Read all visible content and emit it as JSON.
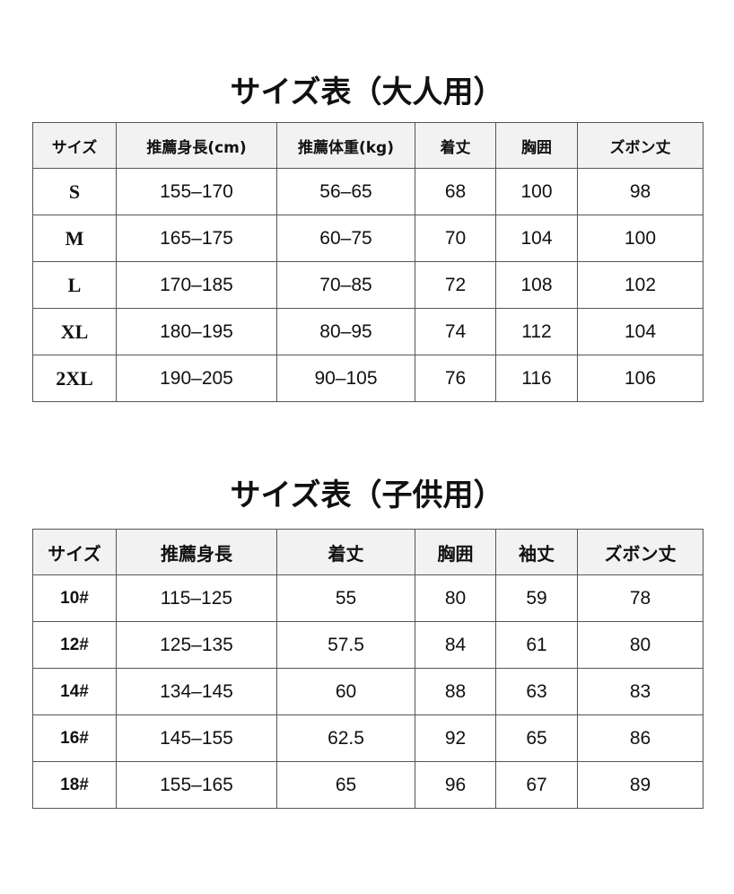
{
  "adult": {
    "title": "サイズ表（大人用）",
    "headers": [
      "サイズ",
      "推薦身長(cm)",
      "推薦体重(kg)",
      "着丈",
      "胸囲",
      "ズボン丈"
    ],
    "rows": [
      [
        "S",
        "155–170",
        "56–65",
        "68",
        "100",
        "98"
      ],
      [
        "M",
        "165–175",
        "60–75",
        "70",
        "104",
        "100"
      ],
      [
        "L",
        "170–185",
        "70–85",
        "72",
        "108",
        "102"
      ],
      [
        "XL",
        "180–195",
        "80–95",
        "74",
        "112",
        "104"
      ],
      [
        "2XL",
        "190–205",
        "90–105",
        "76",
        "116",
        "106"
      ]
    ]
  },
  "kids": {
    "title": "サイズ表（子供用）",
    "headers": [
      "サイズ",
      "推薦身長",
      "着丈",
      "胸囲",
      "袖丈",
      "ズボン丈"
    ],
    "rows": [
      [
        "10#",
        "115–125",
        "55",
        "80",
        "59",
        "78"
      ],
      [
        "12#",
        "125–135",
        "57.5",
        "84",
        "61",
        "80"
      ],
      [
        "14#",
        "134–145",
        "60",
        "88",
        "63",
        "83"
      ],
      [
        "16#",
        "145–155",
        "62.5",
        "92",
        "65",
        "86"
      ],
      [
        "18#",
        "155–165",
        "65",
        "96",
        "67",
        "89"
      ]
    ]
  }
}
